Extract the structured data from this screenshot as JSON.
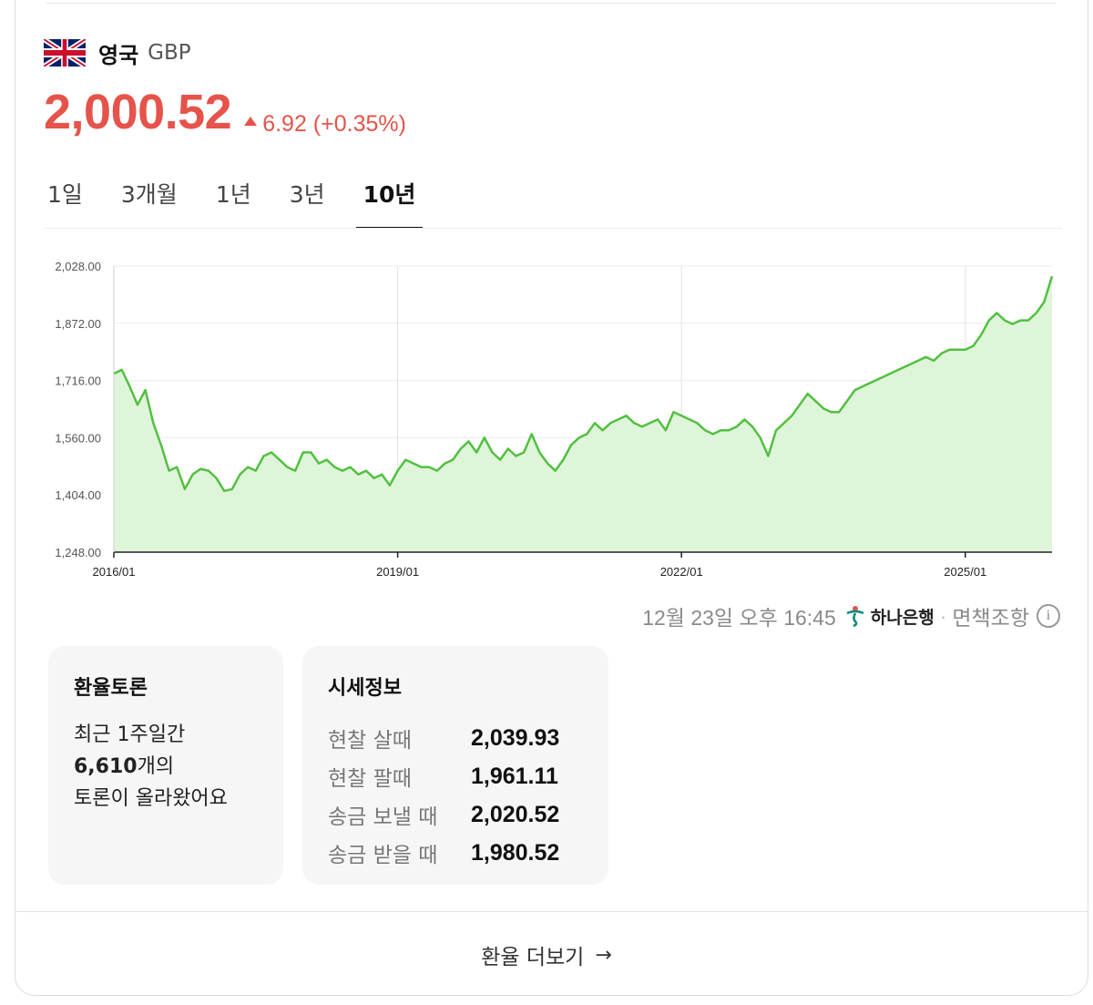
{
  "currency": {
    "country": "영국",
    "code": "GBP",
    "flag_icon": "uk-flag-icon",
    "price": "2,000.52",
    "change": "6.92 (+0.35%)",
    "change_direction": "up",
    "accent_color": "#e5534b"
  },
  "tabs": [
    {
      "label": "1일",
      "active": false
    },
    {
      "label": "3개월",
      "active": false
    },
    {
      "label": "1년",
      "active": false
    },
    {
      "label": "3년",
      "active": false
    },
    {
      "label": "10년",
      "active": true
    }
  ],
  "chart_data": {
    "type": "area",
    "title": "",
    "xlabel": "",
    "ylabel": "",
    "ylim": [
      1248,
      2028
    ],
    "y_ticks": [
      "2,028.00",
      "1,872.00",
      "1,716.00",
      "1,560.00",
      "1,404.00",
      "1,248.00"
    ],
    "x_ticks": [
      "2016/01",
      "2019/01",
      "2022/01",
      "2025/01"
    ],
    "grid": true,
    "line_color": "#52c041",
    "fill_color": "#dff5da",
    "series": [
      {
        "x": [
          "2016/01",
          "2016/02",
          "2016/03",
          "2016/04",
          "2016/05",
          "2016/06",
          "2016/07",
          "2016/08",
          "2016/09",
          "2016/10",
          "2016/11",
          "2016/12",
          "2017/01",
          "2017/02",
          "2017/03",
          "2017/04",
          "2017/05",
          "2017/06",
          "2017/07",
          "2017/08",
          "2017/09",
          "2017/10",
          "2017/11",
          "2017/12",
          "2018/01",
          "2018/02",
          "2018/03",
          "2018/04",
          "2018/05",
          "2018/06",
          "2018/07",
          "2018/08",
          "2018/09",
          "2018/10",
          "2018/11",
          "2018/12",
          "2019/01",
          "2019/02",
          "2019/03",
          "2019/04",
          "2019/05",
          "2019/06",
          "2019/07",
          "2019/08",
          "2019/09",
          "2019/10",
          "2019/11",
          "2019/12",
          "2020/01",
          "2020/02",
          "2020/03",
          "2020/04",
          "2020/05",
          "2020/06",
          "2020/07",
          "2020/08",
          "2020/09",
          "2020/10",
          "2020/11",
          "2020/12",
          "2021/01",
          "2021/02",
          "2021/03",
          "2021/04",
          "2021/05",
          "2021/06",
          "2021/07",
          "2021/08",
          "2021/09",
          "2021/10",
          "2021/11",
          "2021/12",
          "2022/01",
          "2022/02",
          "2022/03",
          "2022/04",
          "2022/05",
          "2022/06",
          "2022/07",
          "2022/08",
          "2022/09",
          "2022/10",
          "2022/11",
          "2022/12",
          "2023/01",
          "2023/02",
          "2023/03",
          "2023/04",
          "2023/05",
          "2023/06",
          "2023/07",
          "2023/08",
          "2023/09",
          "2023/10",
          "2023/11",
          "2023/12",
          "2024/01",
          "2024/02",
          "2024/03",
          "2024/04",
          "2024/05",
          "2024/06",
          "2024/07",
          "2024/08",
          "2024/09",
          "2024/10",
          "2024/11",
          "2024/12",
          "2025/01",
          "2025/02",
          "2025/03",
          "2025/04",
          "2025/05",
          "2025/06",
          "2025/07",
          "2025/08",
          "2025/09",
          "2025/10",
          "2025/11",
          "2025/12"
        ],
        "values": [
          1735,
          1745,
          1700,
          1650,
          1690,
          1600,
          1540,
          1470,
          1480,
          1420,
          1460,
          1475,
          1470,
          1450,
          1415,
          1420,
          1460,
          1480,
          1470,
          1510,
          1520,
          1500,
          1480,
          1470,
          1520,
          1520,
          1490,
          1500,
          1480,
          1470,
          1480,
          1460,
          1470,
          1450,
          1460,
          1430,
          1470,
          1500,
          1490,
          1480,
          1480,
          1470,
          1490,
          1500,
          1530,
          1550,
          1520,
          1560,
          1520,
          1500,
          1530,
          1510,
          1520,
          1570,
          1520,
          1490,
          1470,
          1500,
          1540,
          1560,
          1570,
          1600,
          1580,
          1600,
          1610,
          1620,
          1600,
          1590,
          1600,
          1610,
          1580,
          1630,
          1620,
          1610,
          1600,
          1580,
          1570,
          1580,
          1580,
          1590,
          1610,
          1590,
          1560,
          1510,
          1580,
          1600,
          1620,
          1650,
          1680,
          1660,
          1640,
          1630,
          1630,
          1660,
          1690,
          1700,
          1710,
          1720,
          1730,
          1740,
          1750,
          1760,
          1770,
          1780,
          1770,
          1790,
          1800,
          1800,
          1800,
          1810,
          1840,
          1880,
          1900,
          1880,
          1870,
          1880,
          1880,
          1900,
          1930,
          2000
        ]
      }
    ]
  },
  "meta": {
    "timestamp": "12월 23일 오후 16:45",
    "bank": "하나은행",
    "disclaimer": "면책조항",
    "info_glyph": "i"
  },
  "forum": {
    "title": "환율토론",
    "line1": "최근 1주일간",
    "count": "6,610",
    "count_suffix": "개의",
    "line3": "토론이 올라왔어요"
  },
  "rates": {
    "title": "시세정보",
    "rows": [
      {
        "label": "현찰 살때",
        "value": "2,039.93"
      },
      {
        "label": "현찰 팔때",
        "value": "1,961.11"
      },
      {
        "label": "송금 보낼 때",
        "value": "2,020.52"
      },
      {
        "label": "송금 받을 때",
        "value": "1,980.52"
      }
    ]
  },
  "footer": {
    "more_label": "환율 더보기",
    "arrow": "→"
  }
}
